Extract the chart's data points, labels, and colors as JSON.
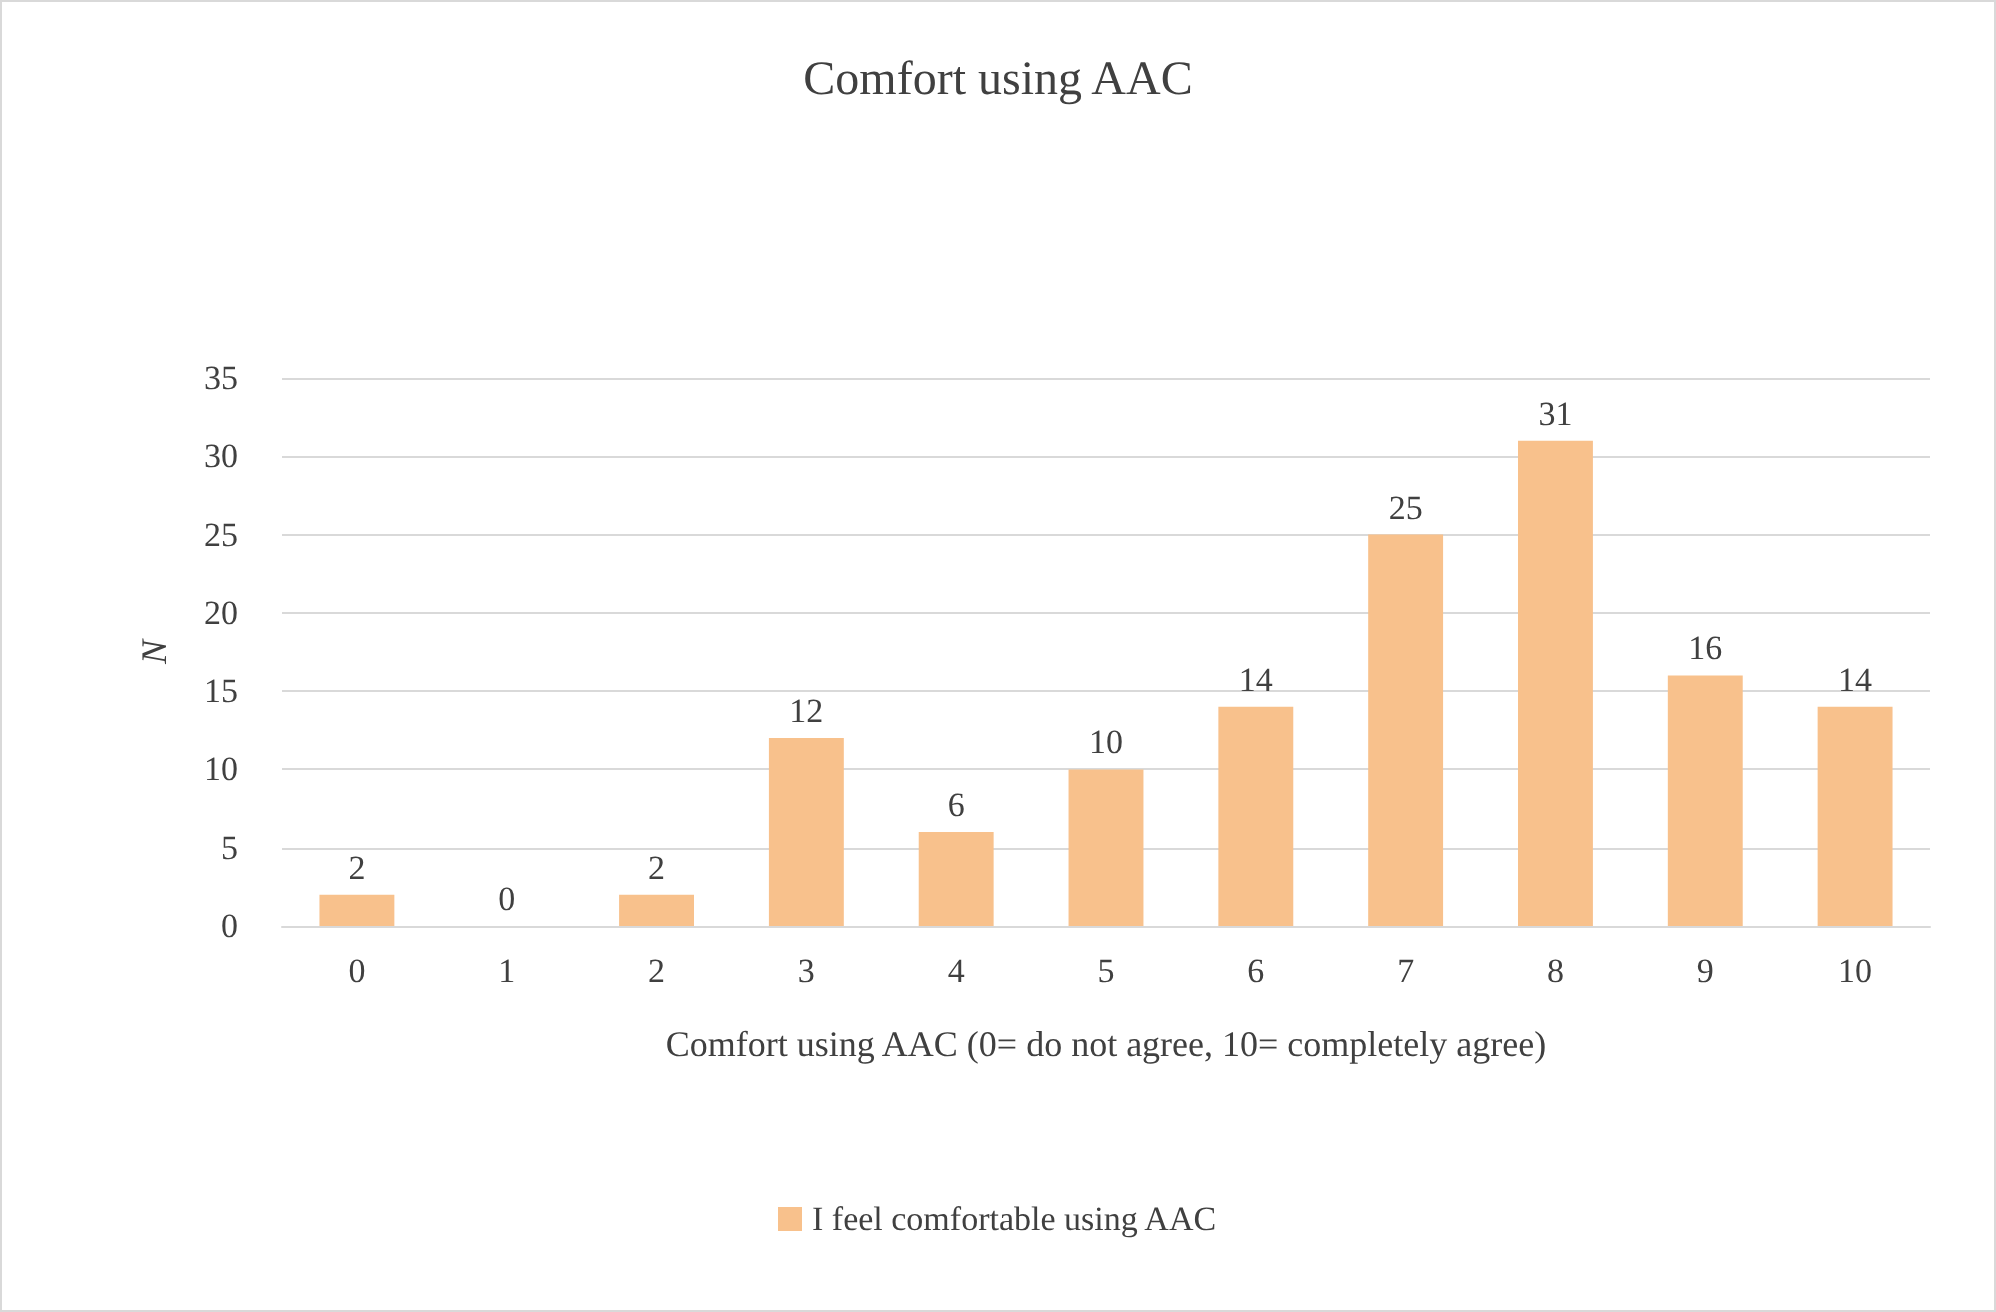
{
  "chart_data": {
    "type": "bar",
    "title": "Comfort using AAC",
    "xlabel": "Comfort using AAC (0= do not agree, 10= completely agree)",
    "ylabel": "N",
    "categories": [
      "0",
      "1",
      "2",
      "3",
      "4",
      "5",
      "6",
      "7",
      "8",
      "9",
      "10"
    ],
    "series": [
      {
        "name": "I feel comfortable using AAC",
        "color": "#f8c18c",
        "values": [
          2,
          0,
          2,
          12,
          6,
          10,
          14,
          25,
          31,
          16,
          14
        ]
      }
    ],
    "ylim": [
      0,
      35
    ],
    "yticks": [
      0,
      5,
      10,
      15,
      20,
      25,
      30,
      35
    ],
    "grid": "y",
    "legend": "bottom",
    "data_labels": true
  }
}
